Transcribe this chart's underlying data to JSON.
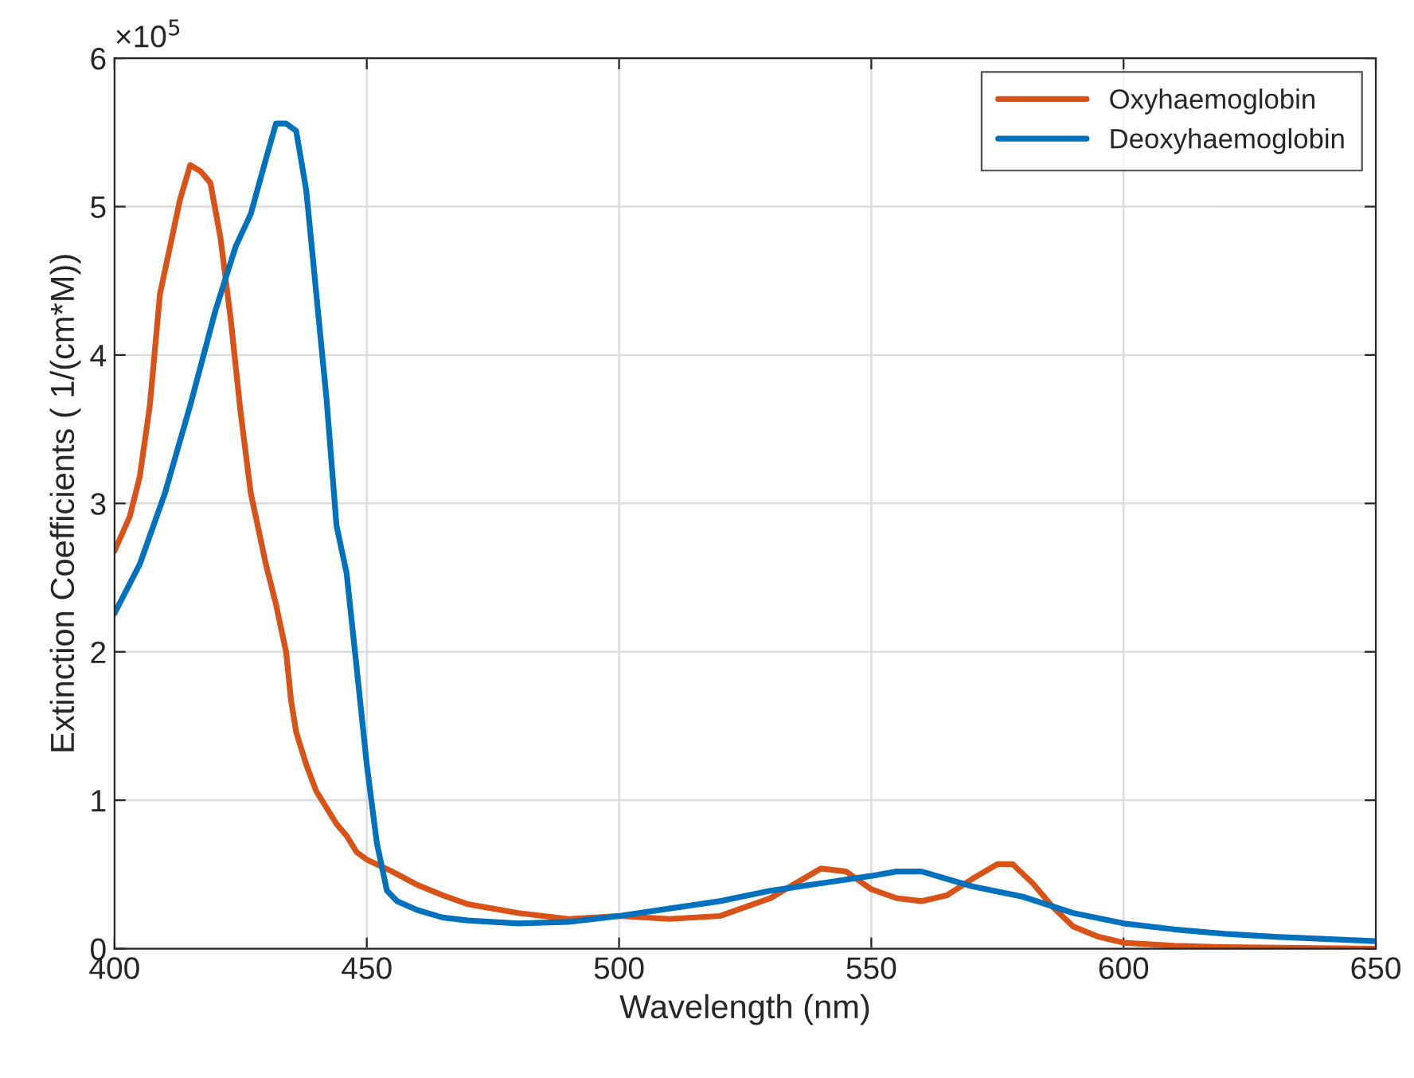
{
  "chart_data": {
    "type": "line",
    "xlabel": "Wavelength (nm)",
    "ylabel": "Extinction Coefficients ( 1/(cm*M))",
    "annotations": [
      "×10$^{5}$"
    ],
    "xlim": [
      400,
      650
    ],
    "xticks": [
      400,
      450,
      500,
      550,
      600,
      650
    ],
    "ylim": [
      0,
      6
    ],
    "yticks": [
      0,
      1,
      2,
      3,
      4,
      5,
      6
    ],
    "grid": true,
    "legend": "top right",
    "line_style": "solid",
    "marker": "none",
    "series": [
      {
        "name": "Oxyhaemoglobin",
        "color": "#d95319",
        "x": [
          400,
          403,
          405,
          407,
          409,
          411,
          413,
          415,
          417,
          419,
          421,
          423,
          425,
          427,
          430,
          432,
          434,
          435,
          436,
          438,
          440,
          442,
          444,
          446,
          448,
          450,
          455,
          460,
          465,
          470,
          480,
          490,
          500,
          510,
          520,
          530,
          540,
          545,
          550,
          555,
          560,
          565,
          570,
          575,
          578,
          582,
          586,
          590,
          595,
          600,
          610,
          620,
          650
        ],
        "values": [
          2.68,
          2.91,
          3.18,
          3.66,
          4.41,
          4.73,
          5.05,
          5.28,
          5.24,
          5.16,
          4.79,
          4.25,
          3.61,
          3.07,
          2.59,
          2.32,
          2.0,
          1.67,
          1.46,
          1.24,
          1.06,
          0.95,
          0.84,
          0.76,
          0.65,
          0.6,
          0.52,
          0.43,
          0.36,
          0.3,
          0.24,
          0.2,
          0.22,
          0.2,
          0.22,
          0.34,
          0.54,
          0.52,
          0.4,
          0.34,
          0.32,
          0.36,
          0.47,
          0.57,
          0.57,
          0.44,
          0.28,
          0.15,
          0.08,
          0.04,
          0.02,
          0.01,
          0.0
        ]
      },
      {
        "name": "Deoxyhaemoglobin",
        "color": "#0072bd",
        "x": [
          400,
          405,
          410,
          415,
          420,
          424,
          427,
          430,
          432,
          434,
          436,
          438,
          440,
          442,
          444,
          446,
          448,
          450,
          452,
          454,
          456,
          460,
          465,
          470,
          480,
          490,
          500,
          510,
          520,
          530,
          540,
          550,
          555,
          560,
          565,
          570,
          580,
          590,
          600,
          610,
          620,
          630,
          650
        ],
        "values": [
          2.26,
          2.59,
          3.07,
          3.66,
          4.3,
          4.73,
          4.95,
          5.32,
          5.56,
          5.56,
          5.51,
          5.11,
          4.41,
          3.71,
          2.85,
          2.53,
          1.89,
          1.24,
          0.71,
          0.39,
          0.32,
          0.26,
          0.21,
          0.19,
          0.17,
          0.18,
          0.22,
          0.27,
          0.32,
          0.39,
          0.44,
          0.49,
          0.52,
          0.52,
          0.47,
          0.42,
          0.35,
          0.24,
          0.17,
          0.13,
          0.1,
          0.08,
          0.05
        ]
      }
    ]
  }
}
